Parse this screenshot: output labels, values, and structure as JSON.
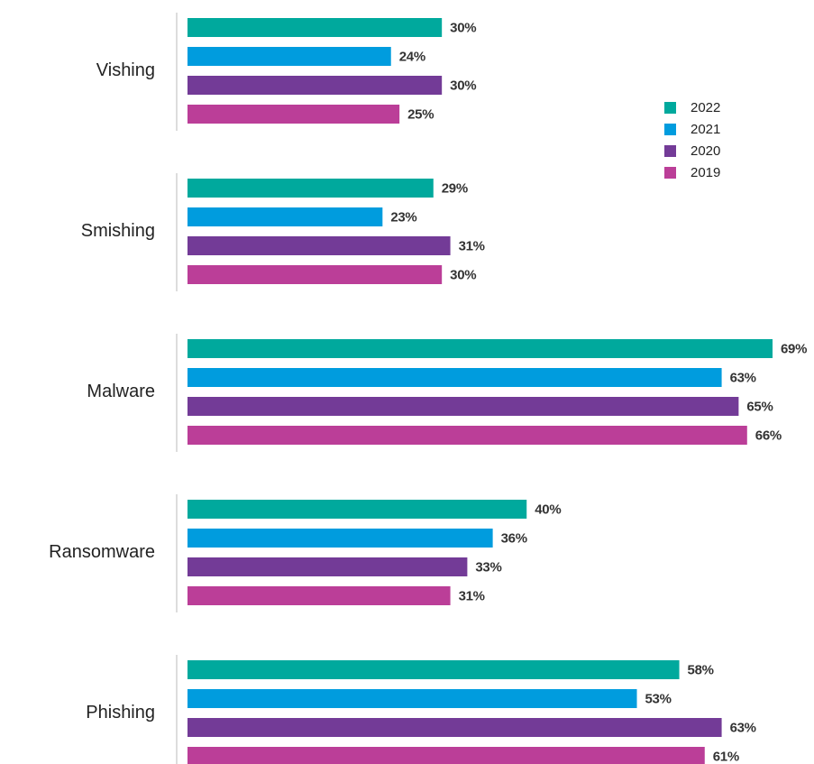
{
  "chart_data": {
    "type": "bar",
    "orientation": "horizontal",
    "categories": [
      "Vishing",
      "Smishing",
      "Malware",
      "Ransomware",
      "Phishing"
    ],
    "series": [
      {
        "name": "2022",
        "color": "#00a99d",
        "values": [
          30,
          29,
          69,
          40,
          58
        ],
        "value_labels": [
          "30%",
          "29%",
          "69%",
          "40%",
          "58%"
        ]
      },
      {
        "name": "2021",
        "color": "#009cde",
        "values": [
          24,
          23,
          63,
          36,
          53
        ],
        "value_labels": [
          "24%",
          "23%",
          "63%",
          "36%",
          "53%"
        ]
      },
      {
        "name": "2020",
        "color": "#733b97",
        "values": [
          30,
          31,
          65,
          33,
          63
        ],
        "value_labels": [
          "30%",
          "31%",
          "65%",
          "33%",
          "63%"
        ]
      },
      {
        "name": "2019",
        "color": "#bb3e98",
        "values": [
          25,
          30,
          66,
          31,
          61
        ],
        "value_labels": [
          "25%",
          "30%",
          "66%",
          "31%",
          "61%"
        ]
      }
    ],
    "legend": "right"
  }
}
